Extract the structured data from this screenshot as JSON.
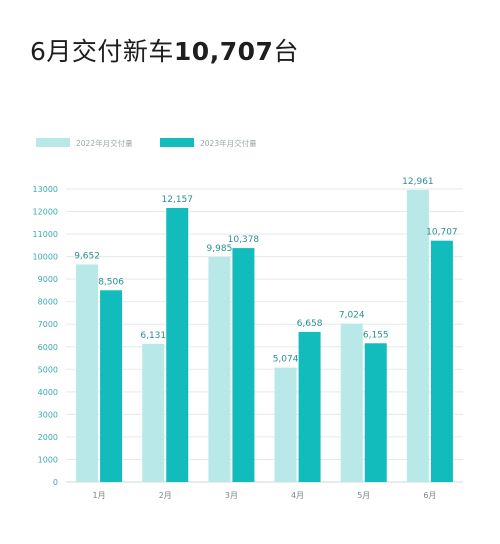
{
  "headline": {
    "prefix": "6月交付新车",
    "number": "10,707",
    "suffix": "台"
  },
  "colors": {
    "series_2022": "#b9e8e8",
    "series_2023": "#12bcbc",
    "grid": "#e3eaea",
    "axis": "#cfd8d8"
  },
  "chart_data": {
    "type": "bar",
    "categories": [
      "1月",
      "2月",
      "3月",
      "4月",
      "5月",
      "6月"
    ],
    "series": [
      {
        "name": "2022年月交付量",
        "values": [
          9652,
          6131,
          9985,
          5074,
          7024,
          12961
        ]
      },
      {
        "name": "2023年月交付量",
        "values": [
          8506,
          12157,
          10378,
          6658,
          6155,
          10707
        ]
      }
    ],
    "value_labels": [
      [
        "9,652",
        "6,131",
        "9,985",
        "5,074",
        "7,024",
        "12,961"
      ],
      [
        "8,506",
        "12,157",
        "10,378",
        "6,658",
        "6,155",
        "10,707"
      ]
    ],
    "yticks": [
      0,
      1000,
      2000,
      3000,
      4000,
      5000,
      6000,
      7000,
      8000,
      9000,
      10000,
      11000,
      12000,
      13000
    ],
    "ylim": [
      0,
      13000
    ],
    "grid": true,
    "legend_position": "top-left",
    "title": "",
    "xlabel": "",
    "ylabel": ""
  }
}
